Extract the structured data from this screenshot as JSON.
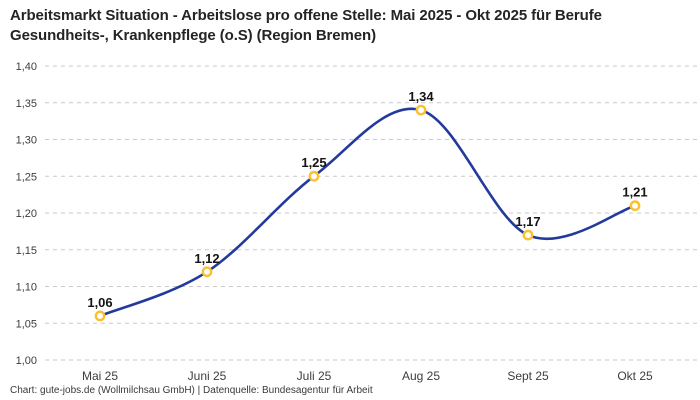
{
  "title": "Arbeitsmarkt Situation - Arbeitslose pro offene Stelle: Mai 2025 - Okt 2025 für Berufe Gesundheits-, Krankenpflege (o.S) (Region Bremen)",
  "attribution": "Chart: gute-jobs.de (Wollmilchsau GmbH) | Datenquelle: Bundesagentur für Arbeit",
  "colors": {
    "line": "#233a9c",
    "marker_ring": "#fbc02d",
    "marker_fill": "#ffffff",
    "grid": "#c9c9c9",
    "title_text": "#242424",
    "tick_text": "#3d3d3d",
    "value_label_text": "#141414"
  },
  "chart_data": {
    "type": "line",
    "curve": "smooth",
    "grid": "horizontal-dashed",
    "legend": "none",
    "categories": [
      "Mai 25",
      "Juni 25",
      "Juli 25",
      "Aug 25",
      "Sept 25",
      "Okt 25"
    ],
    "values": [
      1.06,
      1.12,
      1.25,
      1.34,
      1.17,
      1.21
    ],
    "value_labels": [
      "1,06",
      "1,12",
      "1,25",
      "1,34",
      "1,17",
      "1,21"
    ],
    "y_tick_labels": [
      "1,40",
      "1,35",
      "1,30",
      "1,25",
      "1,20",
      "1,15",
      "1,10",
      "1,05",
      "1,00"
    ],
    "y_tick_values": [
      1.4,
      1.35,
      1.3,
      1.25,
      1.2,
      1.15,
      1.1,
      1.05,
      1.0
    ],
    "ylim": [
      1.0,
      1.4
    ],
    "title": "Arbeitsmarkt Situation - Arbeitslose pro offene Stelle: Mai 2025 - Okt 2025 für Berufe Gesundheits-, Krankenpflege (o.S) (Region Bremen)",
    "xlabel": "",
    "ylabel": ""
  }
}
